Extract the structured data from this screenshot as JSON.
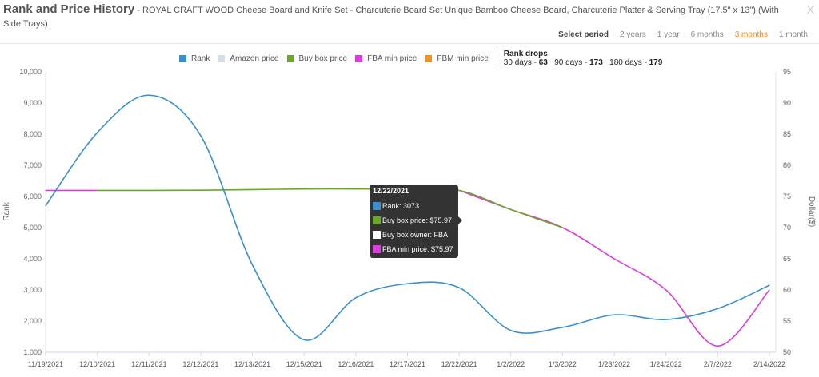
{
  "header": {
    "title": "Rank and Price History",
    "subtitle": " - ROYAL CRAFT WOOD Cheese Board and Knife Set - Charcuterie Board Set Unique Bamboo Cheese Board, Charcuterie Platter & Serving Tray (17.5\" x 13\") (With Side Trays)",
    "close": "X"
  },
  "period": {
    "label": "Select period",
    "options": [
      "2 years",
      "1 year",
      "6 months",
      "3 months",
      "1 month"
    ],
    "active": "3 months"
  },
  "legend": [
    {
      "name": "Rank",
      "color": "#3a8fd1"
    },
    {
      "name": "Amazon price",
      "color": "#d5dde6"
    },
    {
      "name": "Buy box price",
      "color": "#6aa928"
    },
    {
      "name": "FBA min price",
      "color": "#e03be0"
    },
    {
      "name": "FBM min price",
      "color": "#f7901e"
    }
  ],
  "rank_drops": {
    "title": "Rank drops",
    "d30_label": "30 days - ",
    "d30": "63",
    "d90_label": "90 days - ",
    "d90": "173",
    "d180_label": "180 days - ",
    "d180": "179"
  },
  "tooltip": {
    "date": "12/22/2021",
    "rank": "Rank: 3073",
    "buy_box": "Buy box price: $75.97",
    "owner": "Buy box owner: FBA",
    "fba": "FBA min price: $75.97",
    "colors": {
      "rank": "#3a8fd1",
      "buy_box": "#6aa928",
      "owner": "#ffffff",
      "fba": "#e03be0"
    }
  },
  "chart_data": {
    "type": "line",
    "categories": [
      "11/19/2021",
      "12/10/2021",
      "12/11/2021",
      "12/12/2021",
      "12/13/2021",
      "12/15/2021",
      "12/16/2021",
      "12/17/2021",
      "12/22/2021",
      "1/2/2022",
      "1/3/2022",
      "1/23/2022",
      "1/24/2022",
      "2/7/2022",
      "2/14/2022"
    ],
    "y_left": {
      "label": "Rank",
      "range": [
        1000,
        10000
      ],
      "ticks": [
        "1,000",
        "2,000",
        "3,000",
        "4,000",
        "5,000",
        "6,000",
        "7,000",
        "8,000",
        "9,000",
        "10,000"
      ]
    },
    "y_right": {
      "label": "Dollar($)",
      "range": [
        50,
        95
      ],
      "ticks": [
        "50",
        "55",
        "60",
        "65",
        "70",
        "75",
        "80",
        "85",
        "90",
        "95"
      ]
    },
    "series": [
      {
        "name": "Rank",
        "axis": "left",
        "color": "#3a8fd1",
        "values": [
          5700,
          8050,
          9250,
          7950,
          3800,
          1400,
          2750,
          3200,
          3073,
          1700,
          1800,
          2200,
          2050,
          2400,
          3150
        ]
      },
      {
        "name": "FBA min price",
        "axis": "right",
        "color": "#e03be0",
        "values": [
          75.97,
          75.97,
          null,
          null,
          null,
          null,
          null,
          null,
          75.97,
          72.9,
          70,
          65,
          60,
          51,
          60
        ]
      },
      {
        "name": "Buy box price",
        "axis": "right",
        "color": "#6aa928",
        "values": [
          null,
          75.97,
          75.97,
          76,
          76.1,
          76.2,
          76.2,
          76.2,
          75.97,
          72.9,
          70,
          null,
          null,
          null,
          null
        ]
      }
    ],
    "grid": false,
    "legend_position": "top"
  }
}
